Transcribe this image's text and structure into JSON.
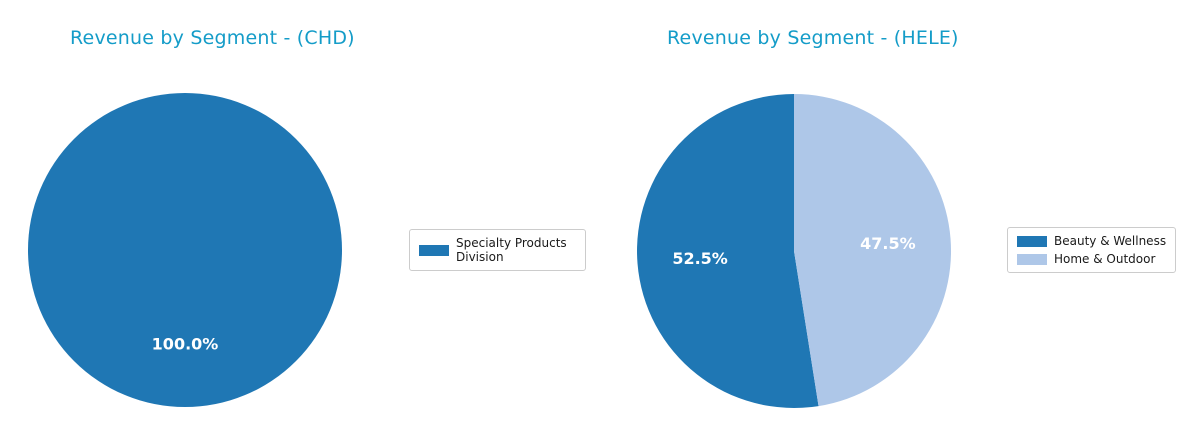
{
  "colors": {
    "title": "#149cc8",
    "background": "#ffffff",
    "pct_label": "#ffffff"
  },
  "chart_data": [
    {
      "type": "pie",
      "title": "Revenue by Segment - (CHD)",
      "categories": [
        "Specialty Products Division"
      ],
      "values": [
        100.0
      ],
      "pct_labels": [
        "100.0%"
      ],
      "slice_colors": [
        "#1f77b4"
      ],
      "start_angle": 90,
      "direction": "counterclockwise",
      "pct_distance": 0.6,
      "legend_position": "center-right",
      "legend": [
        {
          "label": "Specialty Products Division",
          "color": "#1f77b4"
        }
      ]
    },
    {
      "type": "pie",
      "title": "Revenue by Segment - (HELE)",
      "categories": [
        "Beauty & Wellness",
        "Home & Outdoor"
      ],
      "values": [
        52.5,
        47.5
      ],
      "pct_labels": [
        "52.5%",
        "47.5%"
      ],
      "slice_colors": [
        "#1f77b4",
        "#aec7e8"
      ],
      "start_angle": 90,
      "direction": "counterclockwise",
      "pct_distance": 0.6,
      "legend_position": "center-right",
      "legend": [
        {
          "label": "Beauty & Wellness",
          "color": "#1f77b4"
        },
        {
          "label": "Home & Outdoor",
          "color": "#aec7e8"
        }
      ]
    }
  ]
}
